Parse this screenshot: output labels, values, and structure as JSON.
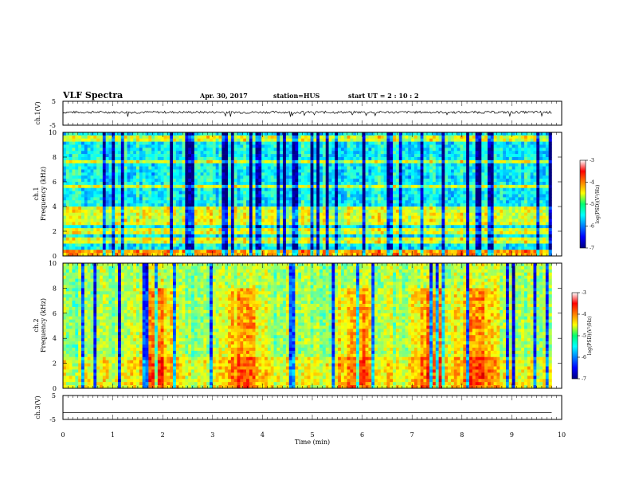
{
  "header": {
    "title": "VLF Spectra",
    "date": "Apr. 30, 2017",
    "station": "station=HUS",
    "start": "start  UT =   2 : 10 : 2"
  },
  "chart_data": [
    {
      "type": "line",
      "panel": "ch1-voltage",
      "ylabel": "ch.1(V)",
      "ylim": [
        -5,
        5
      ],
      "yticks": [
        "5",
        "-5"
      ],
      "xlim": [
        0,
        10
      ],
      "series": [
        {
          "level": 0.4,
          "noise_amplitude": 0.5,
          "x_end": 9.8
        }
      ]
    },
    {
      "type": "heatmap",
      "panel": "ch1-spectrogram",
      "ylabel": "ch.1",
      "ylabel2": "Frequency  (kHz)",
      "ylim": [
        0,
        10
      ],
      "yticks": [
        "0",
        "2",
        "4",
        "6",
        "8",
        "10"
      ],
      "xlim": [
        0,
        10
      ],
      "x_end": 9.8,
      "colorscale": {
        "range": [
          -7,
          -3
        ],
        "ticks": [
          "-3",
          "-4",
          "-5",
          "-6",
          "-7"
        ],
        "label": "log(PSD)(V²/Hz)"
      },
      "bands_khz": [
        0.3,
        1.2,
        2.0,
        2.8,
        3.3,
        3.8,
        5.6,
        7.6,
        9.5
      ],
      "background_level": -5.5
    },
    {
      "type": "heatmap",
      "panel": "ch2-spectrogram",
      "ylabel": "ch.2",
      "ylabel2": "Frequency  (kHz)",
      "ylim": [
        0,
        10
      ],
      "yticks": [
        "0",
        "2",
        "4",
        "6",
        "8",
        "10"
      ],
      "xlim": [
        0,
        10
      ],
      "x_end": 9.8,
      "colorscale": {
        "range": [
          -7,
          -3
        ],
        "ticks": [
          "-3",
          "-4",
          "-5",
          "-6",
          "-7"
        ],
        "label": "log(PSD)(V²/Hz)"
      },
      "background_level": -4.9,
      "hot_spots_min": [
        1.9,
        3.6,
        5.9,
        7.4,
        8.3
      ]
    },
    {
      "type": "line",
      "panel": "ch3-voltage",
      "ylabel": "ch.3(V)",
      "ylim": [
        -5,
        5
      ],
      "yticks": [
        "5",
        "-5"
      ],
      "xlim": [
        0,
        10
      ],
      "xlabel": "Time  (min)",
      "xticks": [
        "0",
        "1",
        "2",
        "3",
        "4",
        "5",
        "6",
        "7",
        "8",
        "9",
        "10"
      ],
      "series": [
        {
          "level": -2.2,
          "noise_amplitude": 0,
          "x_end": 9.8
        }
      ]
    }
  ]
}
